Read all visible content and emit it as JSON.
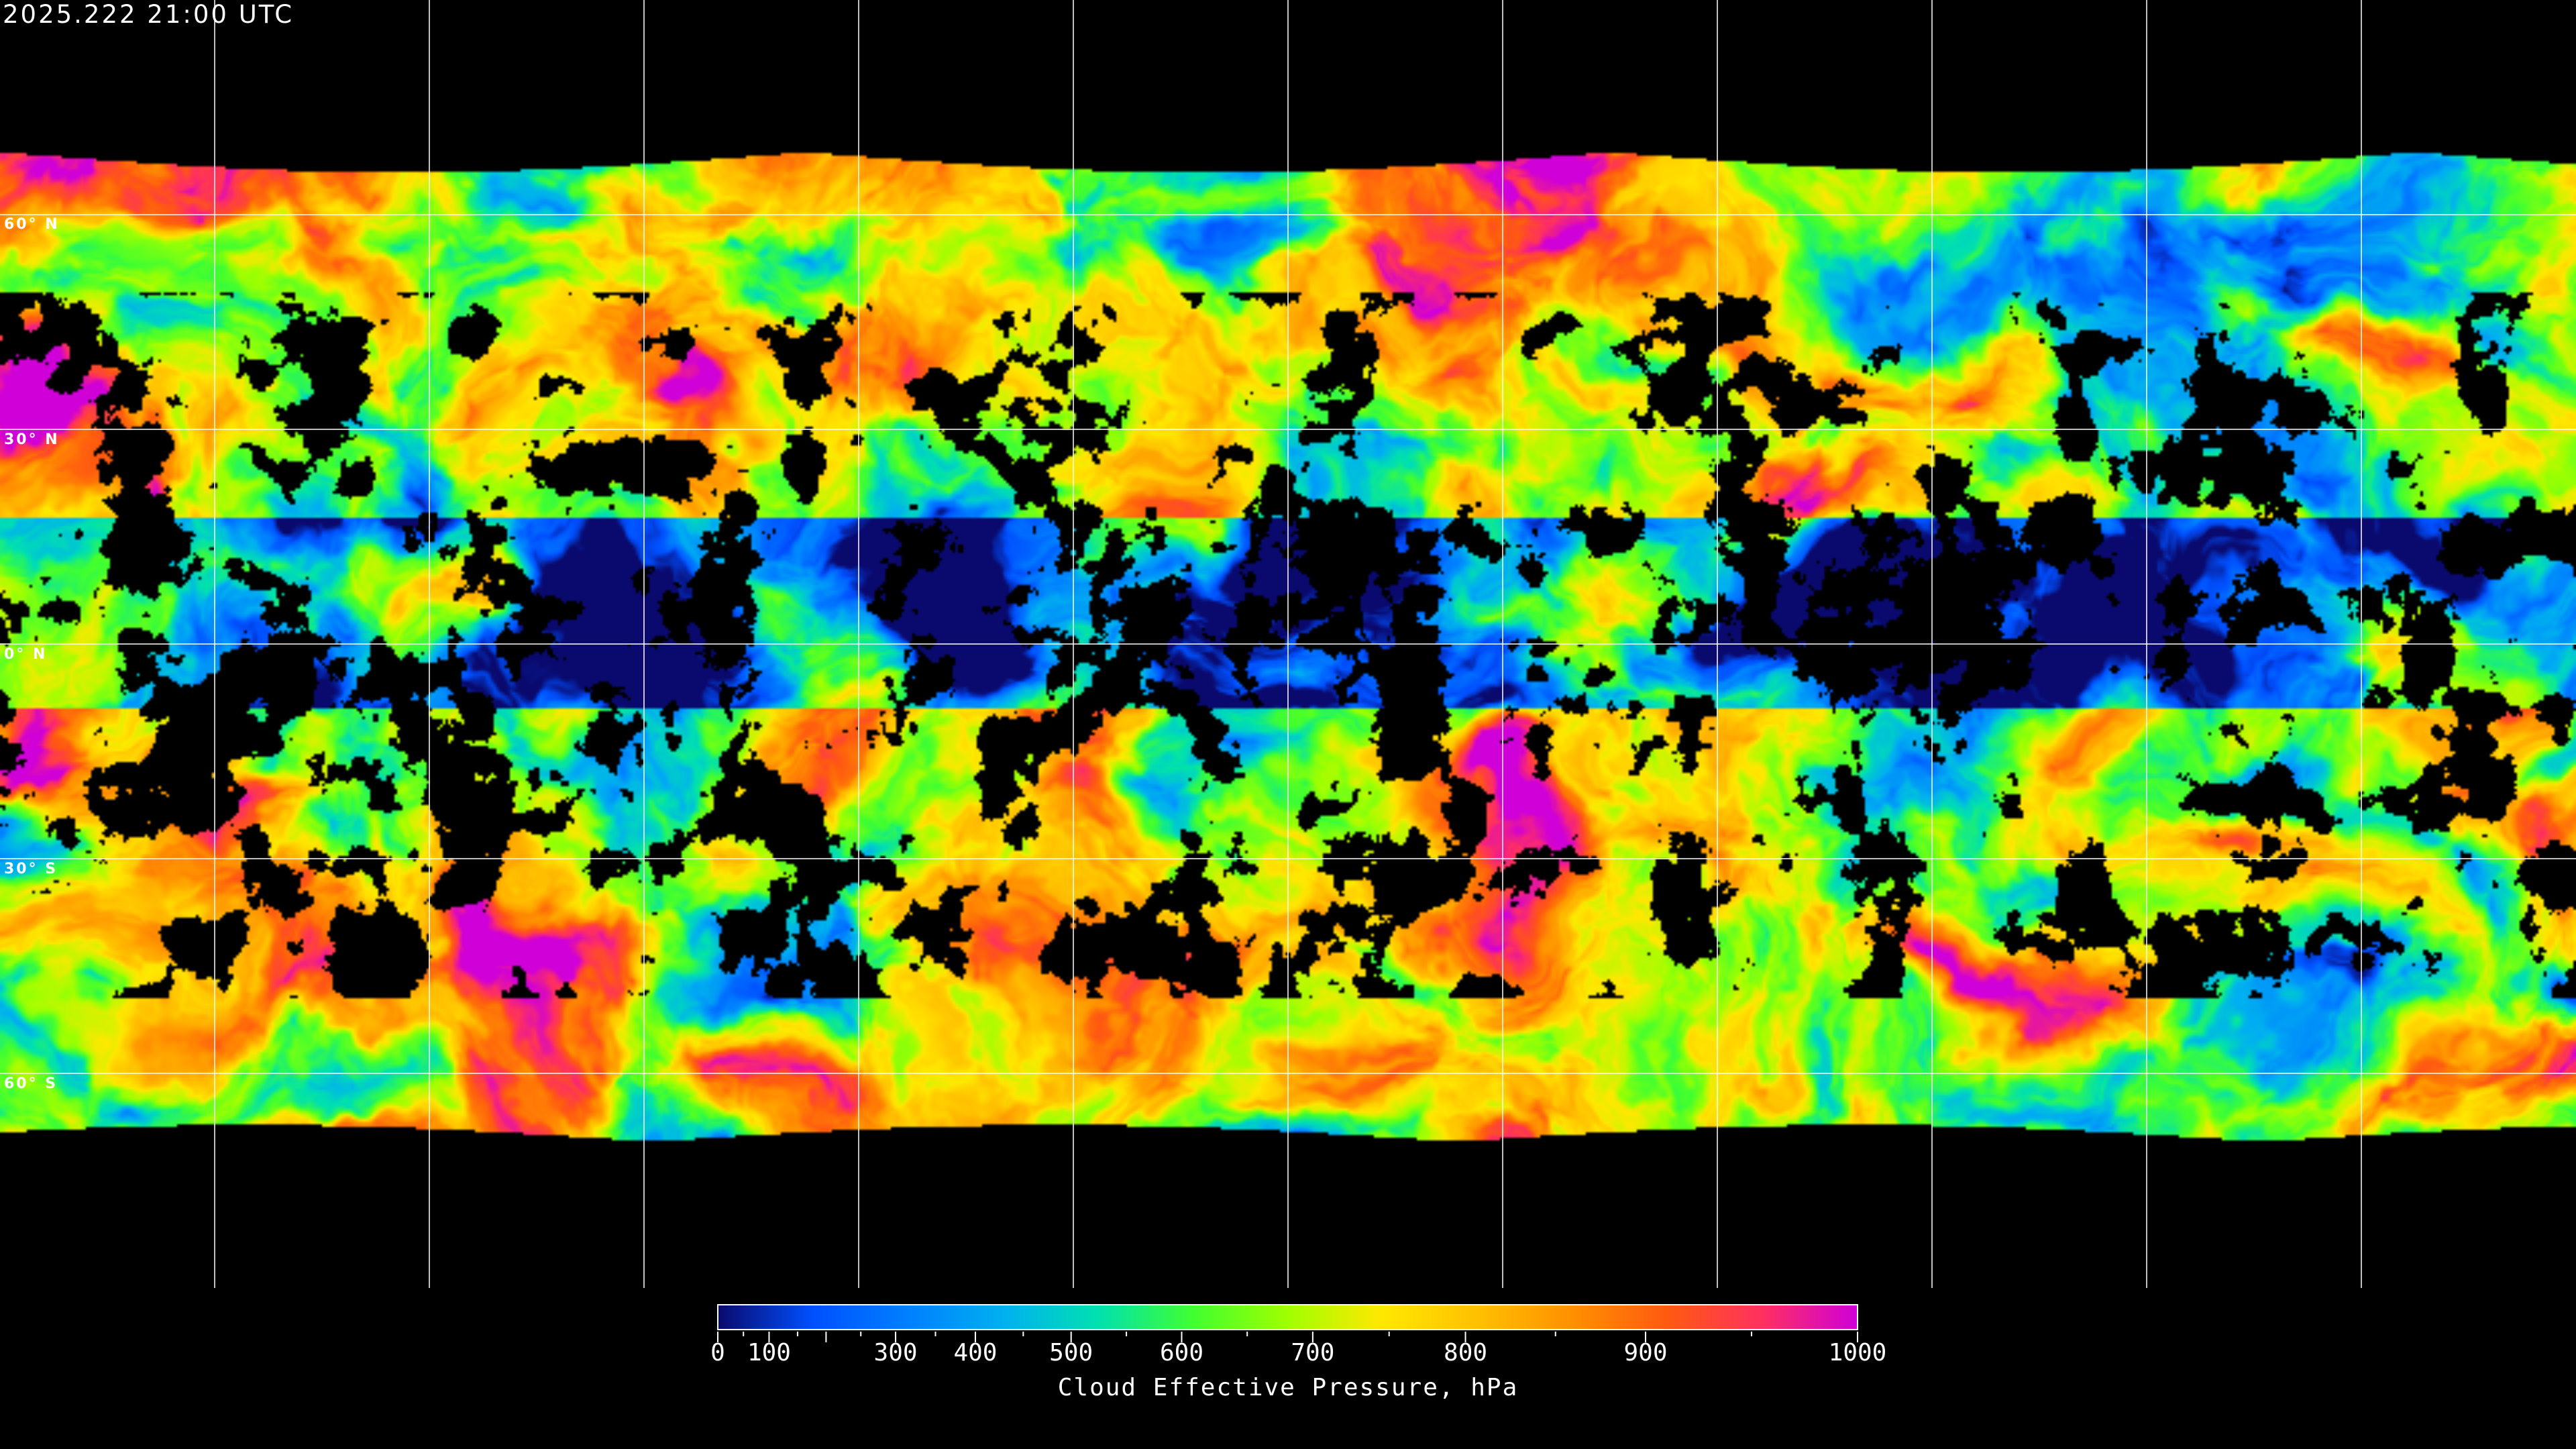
{
  "header": {
    "timestamp": "2025.222 21:00 UTC"
  },
  "map": {
    "projection": "equirectangular",
    "latitude_labels": [
      "60° N",
      "30° N",
      "0° N",
      "30° S",
      "60° S"
    ],
    "gridline_color": "#ffffff",
    "no_data_color": "#000000"
  },
  "colorbar": {
    "title": "Cloud Effective Pressure, hPa",
    "range": [
      0,
      1000
    ],
    "major_ticks": [
      0,
      100,
      200,
      300,
      400,
      500,
      600,
      700,
      800,
      900,
      1000
    ],
    "labels": [
      "0",
      "100",
      "300",
      "400",
      "500",
      "600",
      "700",
      "800",
      "900",
      "1000"
    ],
    "label_values": [
      0,
      100,
      300,
      400,
      500,
      600,
      700,
      800,
      900,
      1000
    ],
    "minor_ticks": [
      50,
      150,
      250,
      350,
      450,
      550,
      650,
      750,
      850,
      950
    ],
    "colors": [
      "#0a0a6e",
      "#0050ff",
      "#0080ff",
      "#00b0f0",
      "#00e0b0",
      "#40ff30",
      "#a0ff00",
      "#ffe800",
      "#ffc000",
      "#ff9000",
      "#ff5a10",
      "#ff3060",
      "#d000d8"
    ]
  }
}
